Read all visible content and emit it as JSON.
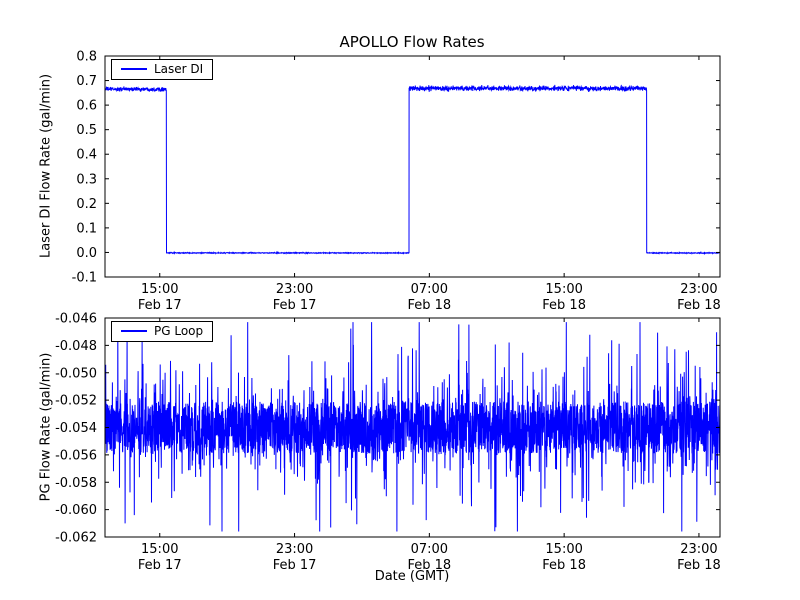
{
  "figure": {
    "background": "#ffffff",
    "line_color": "#0000ff",
    "frame_color": "#000000"
  },
  "chart_data": [
    {
      "type": "line",
      "title": "APOLLO Flow Rates",
      "ylabel": "Laser DI Flow Rate (gal/min)",
      "legend_label": "Laser DI",
      "legend_position": "upper left",
      "line_color": "#0000ff",
      "grid": false,
      "xlim_hours_from_feb17_0000": [
        11.75,
        48.25
      ],
      "ylim": [
        -0.1,
        0.8
      ],
      "yticks": [
        {
          "v": 0.8,
          "label": "0.8"
        },
        {
          "v": 0.7,
          "label": "0.7"
        },
        {
          "v": 0.6,
          "label": "0.6"
        },
        {
          "v": 0.5,
          "label": "0.5"
        },
        {
          "v": 0.4,
          "label": "0.4"
        },
        {
          "v": 0.3,
          "label": "0.3"
        },
        {
          "v": 0.2,
          "label": "0.2"
        },
        {
          "v": 0.1,
          "label": "0.1"
        },
        {
          "v": 0.0,
          "label": "0.0"
        },
        {
          "v": -0.1,
          "label": "-0.1"
        }
      ],
      "xticks": [
        {
          "v": 15,
          "line1": "15:00",
          "line2": "Feb 17"
        },
        {
          "v": 23,
          "line1": "23:00",
          "line2": "Feb 17"
        },
        {
          "v": 31,
          "line1": "07:00",
          "line2": "Feb 18"
        },
        {
          "v": 39,
          "line1": "15:00",
          "line2": "Feb 18"
        },
        {
          "v": 47,
          "line1": "23:00",
          "line2": "Feb 18"
        }
      ],
      "segments": [
        {
          "x_start": 11.75,
          "x_end": 15.4,
          "value": 0.665,
          "noise": 0.013
        },
        {
          "x_start": 15.4,
          "x_end": 29.8,
          "value": -0.002,
          "noise": 0.0025
        },
        {
          "x_start": 29.8,
          "x_end": 43.9,
          "value": 0.668,
          "noise": 0.016
        },
        {
          "x_start": 43.9,
          "x_end": 48.25,
          "value": -0.002,
          "noise": 0.0025
        }
      ]
    },
    {
      "type": "line",
      "title": "",
      "ylabel": "PG Flow Rate (gal/min)",
      "xlabel": "Date (GMT)",
      "legend_label": "PG Loop",
      "legend_position": "upper left",
      "line_color": "#0000ff",
      "grid": false,
      "xlim_hours_from_feb17_0000": [
        11.75,
        48.25
      ],
      "ylim": [
        -0.062,
        -0.046
      ],
      "yticks": [
        {
          "v": -0.046,
          "label": "-0.046"
        },
        {
          "v": -0.048,
          "label": "-0.048"
        },
        {
          "v": -0.05,
          "label": "-0.050"
        },
        {
          "v": -0.052,
          "label": "-0.052"
        },
        {
          "v": -0.054,
          "label": "-0.054"
        },
        {
          "v": -0.056,
          "label": "-0.056"
        },
        {
          "v": -0.058,
          "label": "-0.058"
        },
        {
          "v": -0.06,
          "label": "-0.060"
        },
        {
          "v": -0.062,
          "label": "-0.062"
        }
      ],
      "xticks": [
        {
          "v": 15,
          "line1": "15:00",
          "line2": "Feb 17"
        },
        {
          "v": 23,
          "line1": "23:00",
          "line2": "Feb 17"
        },
        {
          "v": 31,
          "line1": "07:00",
          "line2": "Feb 18"
        },
        {
          "v": 39,
          "line1": "15:00",
          "line2": "Feb 18"
        },
        {
          "v": 47,
          "line1": "23:00",
          "line2": "Feb 18"
        }
      ],
      "noise_model": {
        "mean": -0.054,
        "band_halfwidth": 0.0019,
        "bristle_probability": 0.3,
        "bristle_max": 0.0023,
        "spike_probability": 0.07,
        "spike_max": 0.0048,
        "min": -0.0616,
        "max": -0.0463
      }
    }
  ]
}
